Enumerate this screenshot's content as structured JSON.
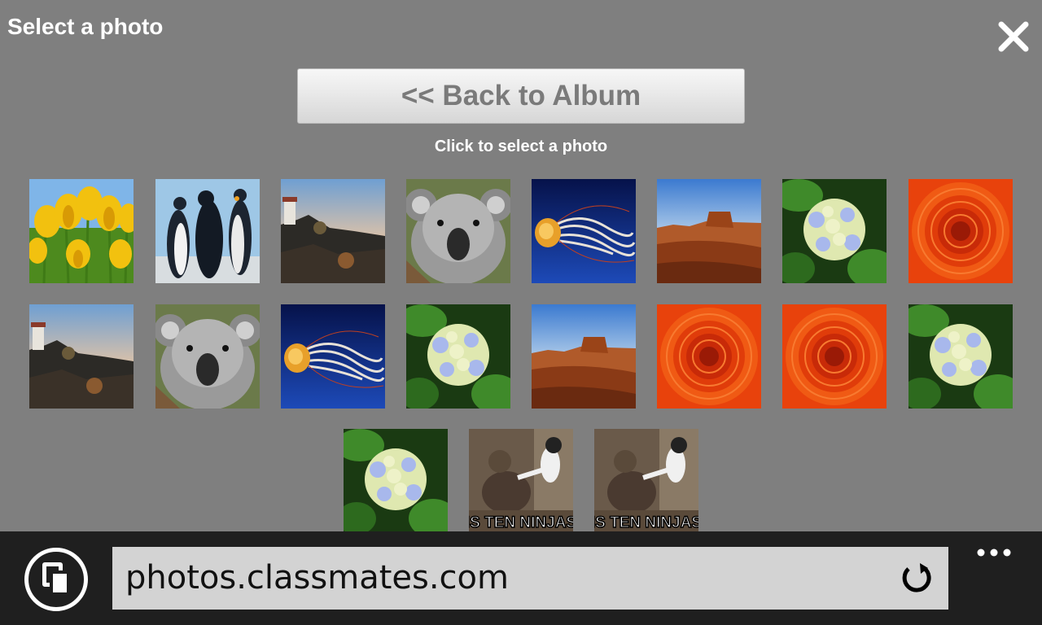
{
  "header": {
    "title": "Select a photo",
    "close_icon": "close-icon"
  },
  "main": {
    "back_button_label": "<< Back to Album",
    "instruction": "Click to select a photo",
    "photos": [
      {
        "subject": "tulips"
      },
      {
        "subject": "penguins"
      },
      {
        "subject": "lighthouse"
      },
      {
        "subject": "koala"
      },
      {
        "subject": "jellyfish"
      },
      {
        "subject": "desert"
      },
      {
        "subject": "hydrangeas"
      },
      {
        "subject": "chrysanthemum"
      },
      {
        "subject": "lighthouse"
      },
      {
        "subject": "koala"
      },
      {
        "subject": "jellyfish"
      },
      {
        "subject": "hydrangeas"
      },
      {
        "subject": "desert"
      },
      {
        "subject": "chrysanthemum"
      },
      {
        "subject": "chrysanthemum"
      },
      {
        "subject": "hydrangeas"
      },
      {
        "subject": "hydrangeas"
      },
      {
        "subject": "meme",
        "caption": "IS TEN NINJAS"
      },
      {
        "subject": "meme",
        "caption": "IS TEN NINJAS"
      }
    ]
  },
  "browser": {
    "url": "photos.classmates.com",
    "tabs_icon": "tabs-icon",
    "refresh_icon": "refresh-icon",
    "more_icon": "more-icon",
    "colors": {
      "bar": "#1f1f1f",
      "address": "#d3d3d3",
      "page": "#7f7f7f"
    }
  }
}
